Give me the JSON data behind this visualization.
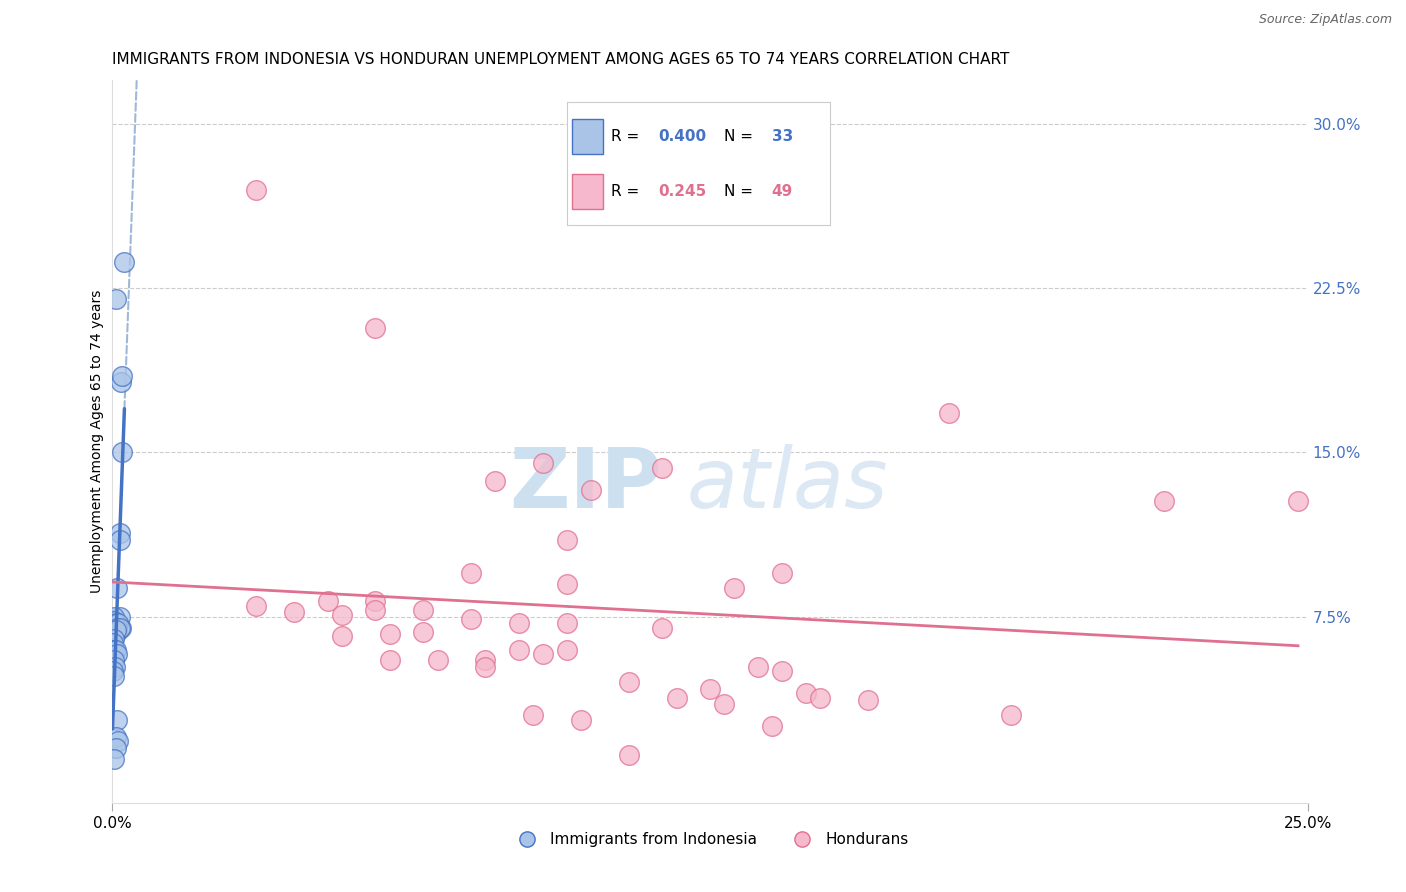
{
  "title": "IMMIGRANTS FROM INDONESIA VS HONDURAN UNEMPLOYMENT AMONG AGES 65 TO 74 YEARS CORRELATION CHART",
  "source": "Source: ZipAtlas.com",
  "ylabel": "Unemployment Among Ages 65 to 74 years",
  "color_blue": "#aac4e8",
  "color_pink": "#f5b8cc",
  "color_blue_line": "#4472c4",
  "color_pink_line": "#e07090",
  "color_blue_dashed": "#a0b8d8",
  "xlim": [
    0,
    0.25
  ],
  "ylim": [
    -0.01,
    0.32
  ],
  "y_ticks_right": [
    0.075,
    0.15,
    0.225,
    0.3
  ],
  "blue_points": [
    [
      0.0008,
      0.22
    ],
    [
      0.0025,
      0.237
    ],
    [
      0.0018,
      0.182
    ],
    [
      0.002,
      0.185
    ],
    [
      0.002,
      0.15
    ],
    [
      0.0015,
      0.113
    ],
    [
      0.0015,
      0.11
    ],
    [
      0.001,
      0.088
    ],
    [
      0.0015,
      0.075
    ],
    [
      0.001,
      0.068
    ],
    [
      0.0018,
      0.07
    ],
    [
      0.001,
      0.028
    ],
    [
      0.0004,
      0.075
    ],
    [
      0.0004,
      0.073
    ],
    [
      0.0008,
      0.072
    ],
    [
      0.0012,
      0.072
    ],
    [
      0.001,
      0.07
    ],
    [
      0.0015,
      0.07
    ],
    [
      0.0007,
      0.069
    ],
    [
      0.0004,
      0.065
    ],
    [
      0.0002,
      0.063
    ],
    [
      0.0002,
      0.06
    ],
    [
      0.0004,
      0.06
    ],
    [
      0.0008,
      0.06
    ],
    [
      0.0009,
      0.058
    ],
    [
      0.0004,
      0.055
    ],
    [
      0.0006,
      0.052
    ],
    [
      0.0002,
      0.05
    ],
    [
      0.0004,
      0.048
    ],
    [
      0.0008,
      0.02
    ],
    [
      0.0012,
      0.018
    ],
    [
      0.0008,
      0.015
    ],
    [
      0.0004,
      0.01
    ]
  ],
  "pink_points": [
    [
      0.03,
      0.27
    ],
    [
      0.055,
      0.207
    ],
    [
      0.09,
      0.145
    ],
    [
      0.115,
      0.143
    ],
    [
      0.08,
      0.137
    ],
    [
      0.1,
      0.133
    ],
    [
      0.175,
      0.168
    ],
    [
      0.095,
      0.11
    ],
    [
      0.075,
      0.095
    ],
    [
      0.14,
      0.095
    ],
    [
      0.095,
      0.09
    ],
    [
      0.13,
      0.088
    ],
    [
      0.22,
      0.128
    ],
    [
      0.045,
      0.082
    ],
    [
      0.055,
      0.082
    ],
    [
      0.055,
      0.078
    ],
    [
      0.065,
      0.078
    ],
    [
      0.03,
      0.08
    ],
    [
      0.038,
      0.077
    ],
    [
      0.048,
      0.076
    ],
    [
      0.075,
      0.074
    ],
    [
      0.085,
      0.072
    ],
    [
      0.095,
      0.072
    ],
    [
      0.115,
      0.07
    ],
    [
      0.065,
      0.068
    ],
    [
      0.058,
      0.067
    ],
    [
      0.048,
      0.066
    ],
    [
      0.085,
      0.06
    ],
    [
      0.095,
      0.06
    ],
    [
      0.09,
      0.058
    ],
    [
      0.058,
      0.055
    ],
    [
      0.068,
      0.055
    ],
    [
      0.078,
      0.055
    ],
    [
      0.078,
      0.052
    ],
    [
      0.135,
      0.052
    ],
    [
      0.14,
      0.05
    ],
    [
      0.108,
      0.045
    ],
    [
      0.125,
      0.042
    ],
    [
      0.145,
      0.04
    ],
    [
      0.148,
      0.038
    ],
    [
      0.118,
      0.038
    ],
    [
      0.128,
      0.035
    ],
    [
      0.158,
      0.037
    ],
    [
      0.188,
      0.03
    ],
    [
      0.248,
      0.128
    ],
    [
      0.088,
      0.03
    ],
    [
      0.098,
      0.028
    ],
    [
      0.108,
      0.012
    ],
    [
      0.138,
      0.025
    ]
  ]
}
